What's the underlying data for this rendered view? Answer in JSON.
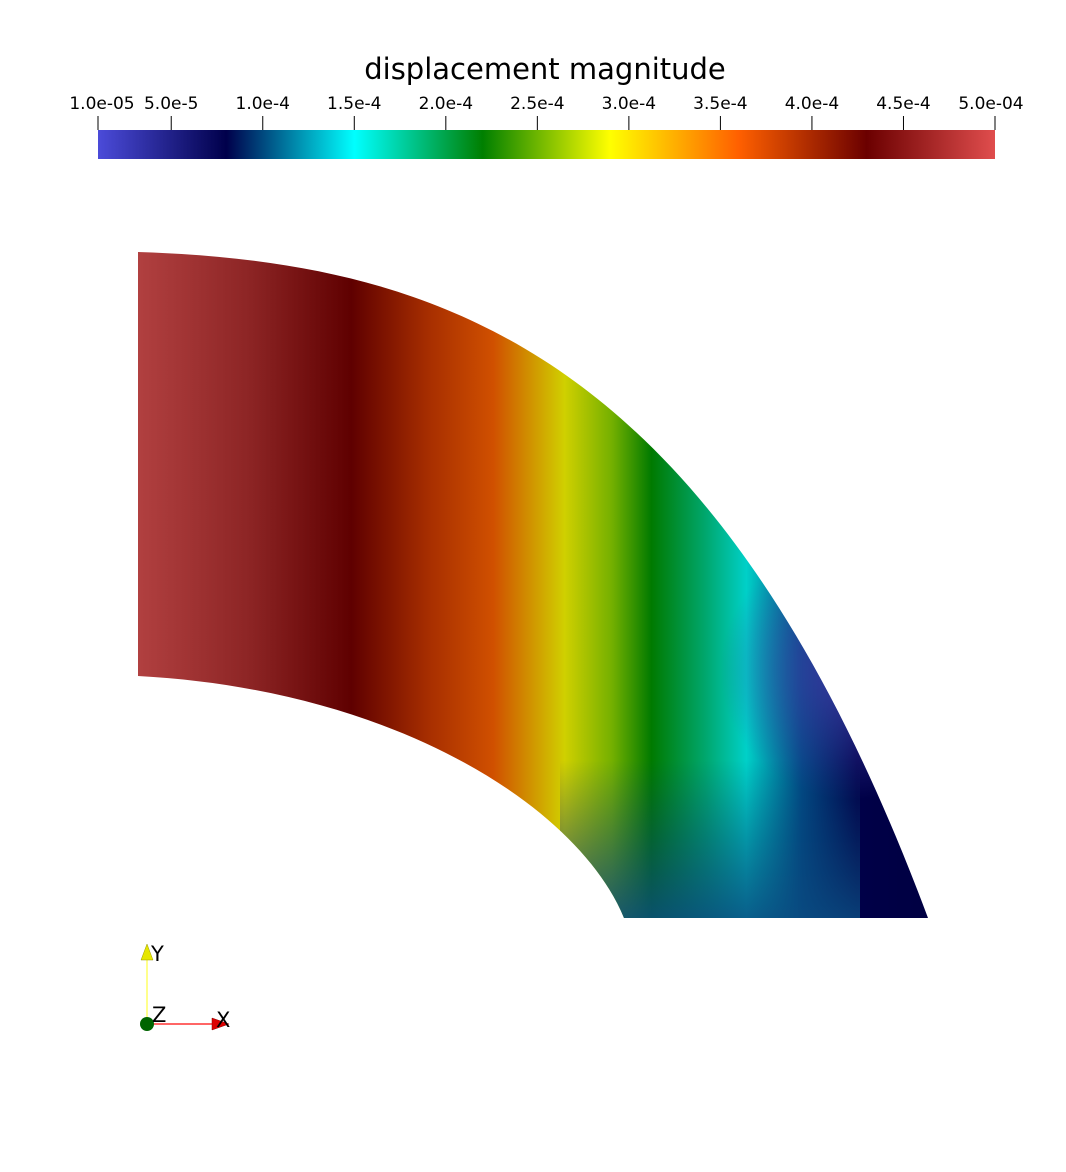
{
  "scalar_bar": {
    "title": "displacement magnitude",
    "ticks": [
      {
        "label": "1.0e-05",
        "value": 1e-05
      },
      {
        "label": "5.0e-5",
        "value": 5e-05
      },
      {
        "label": "1.0e-4",
        "value": 0.0001
      },
      {
        "label": "1.5e-4",
        "value": 0.00015
      },
      {
        "label": "2.0e-4",
        "value": 0.0002
      },
      {
        "label": "2.5e-4",
        "value": 0.00025
      },
      {
        "label": "3.0e-4",
        "value": 0.0003
      },
      {
        "label": "3.5e-4",
        "value": 0.00035
      },
      {
        "label": "4.0e-4",
        "value": 0.0004
      },
      {
        "label": "4.5e-4",
        "value": 0.00045
      },
      {
        "label": "5.0e-04",
        "value": 0.0005
      }
    ],
    "range": [
      1e-05,
      0.0005
    ],
    "colormap": [
      "#4b4bd9",
      "#00004b",
      "#00ffff",
      "#007f00",
      "#ffff00",
      "#ff6000",
      "#6b0000",
      "#e04d4d"
    ]
  },
  "orientation_axes": {
    "x_label": "X",
    "y_label": "Y",
    "z_label": "Z",
    "x_color": "#ff0000",
    "y_color": "#ffff00",
    "z_color": "#006400"
  }
}
